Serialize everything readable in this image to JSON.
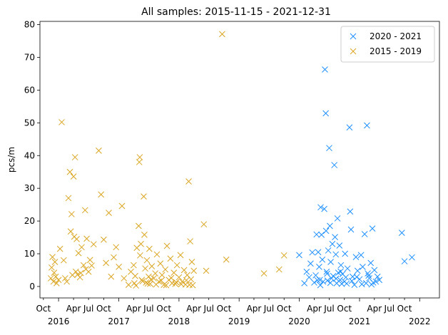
{
  "chart_data": {
    "type": "scatter",
    "title": "All samples: 2015-11-15 - 2021-12-31",
    "ylabel": "pcs/m",
    "xlabel": "",
    "ylim": [
      -3.5,
      81
    ],
    "xlim": [
      "2015-09-10",
      "2022-05-01"
    ],
    "yticks": [
      0,
      10,
      20,
      30,
      40,
      50,
      60,
      70,
      80
    ],
    "xticks_minor": [
      {
        "date": "2015-10-01",
        "label": "Oct"
      },
      {
        "date": "2016-04-01",
        "label": "Apr"
      },
      {
        "date": "2016-07-01",
        "label": "Jul"
      },
      {
        "date": "2016-10-01",
        "label": "Oct"
      },
      {
        "date": "2017-04-01",
        "label": "Apr"
      },
      {
        "date": "2017-07-01",
        "label": "Jul"
      },
      {
        "date": "2017-10-01",
        "label": "Oct"
      },
      {
        "date": "2018-04-01",
        "label": "Apr"
      },
      {
        "date": "2018-07-01",
        "label": "Jul"
      },
      {
        "date": "2018-10-01",
        "label": "Oct"
      },
      {
        "date": "2019-04-01",
        "label": "Apr"
      },
      {
        "date": "2019-07-01",
        "label": "Jul"
      },
      {
        "date": "2019-10-01",
        "label": "Oct"
      },
      {
        "date": "2020-04-01",
        "label": "Apr"
      },
      {
        "date": "2020-07-01",
        "label": "Jul"
      },
      {
        "date": "2020-10-01",
        "label": "Oct"
      },
      {
        "date": "2021-04-01",
        "label": "Apr"
      },
      {
        "date": "2021-07-01",
        "label": "Jul"
      },
      {
        "date": "2021-10-01",
        "label": "Oct"
      }
    ],
    "xticks_major": [
      {
        "date": "2016-01-01",
        "label": "2016"
      },
      {
        "date": "2017-01-01",
        "label": "2017"
      },
      {
        "date": "2018-01-01",
        "label": "2018"
      },
      {
        "date": "2019-01-01",
        "label": "2019"
      },
      {
        "date": "2020-01-01",
        "label": "2020"
      },
      {
        "date": "2021-01-01",
        "label": "2021"
      },
      {
        "date": "2022-01-01",
        "label": "2022"
      }
    ],
    "legend_position": "top-right",
    "grid": false,
    "marker": "x",
    "series": [
      {
        "name": "2020 - 2021",
        "color": "#1e90ff",
        "points": [
          [
            "2020-01-01",
            9.6
          ],
          [
            "2020-02-01",
            1.0
          ],
          [
            "2020-02-15",
            4.5
          ],
          [
            "2020-03-01",
            2.8
          ],
          [
            "2020-03-10",
            7.0
          ],
          [
            "2020-03-20",
            10.4
          ],
          [
            "2020-04-01",
            1.2
          ],
          [
            "2020-04-10",
            3.4
          ],
          [
            "2020-04-15",
            15.9
          ],
          [
            "2020-04-25",
            10.5
          ],
          [
            "2020-05-01",
            6.0
          ],
          [
            "2020-05-05",
            2.0
          ],
          [
            "2020-05-10",
            24.2
          ],
          [
            "2020-05-15",
            15.8
          ],
          [
            "2020-05-20",
            8.2
          ],
          [
            "2020-05-25",
            1.5
          ],
          [
            "2020-06-01",
            23.7
          ],
          [
            "2020-06-05",
            66.3
          ],
          [
            "2020-06-10",
            52.9
          ],
          [
            "2020-06-12",
            17.0
          ],
          [
            "2020-06-15",
            4.5
          ],
          [
            "2020-06-20",
            1.8
          ],
          [
            "2020-06-25",
            11.0
          ],
          [
            "2020-07-01",
            42.3
          ],
          [
            "2020-07-05",
            18.5
          ],
          [
            "2020-07-10",
            7.5
          ],
          [
            "2020-07-15",
            2.5
          ],
          [
            "2020-07-20",
            13.0
          ],
          [
            "2020-07-25",
            3.2
          ],
          [
            "2020-08-01",
            37.1
          ],
          [
            "2020-08-05",
            15.1
          ],
          [
            "2020-08-10",
            9.8
          ],
          [
            "2020-08-15",
            1.0
          ],
          [
            "2020-08-20",
            20.8
          ],
          [
            "2020-08-25",
            4.2
          ],
          [
            "2020-09-01",
            12.5
          ],
          [
            "2020-09-05",
            2.0
          ],
          [
            "2020-09-10",
            6.5
          ],
          [
            "2020-09-15",
            0.8
          ],
          [
            "2020-09-20",
            3.8
          ],
          [
            "2020-10-01",
            1.5
          ],
          [
            "2020-10-05",
            10.0
          ],
          [
            "2020-10-10",
            2.8
          ],
          [
            "2020-10-20",
            5.5
          ],
          [
            "2020-11-01",
            48.6
          ],
          [
            "2020-11-05",
            22.9
          ],
          [
            "2020-11-10",
            17.4
          ],
          [
            "2020-11-20",
            3.0
          ],
          [
            "2020-12-01",
            0.5
          ],
          [
            "2020-12-10",
            9.0
          ],
          [
            "2020-12-20",
            4.8
          ],
          [
            "2021-01-01",
            2.2
          ],
          [
            "2021-01-10",
            9.6
          ],
          [
            "2021-01-20",
            6.0
          ],
          [
            "2021-02-01",
            16.0
          ],
          [
            "2021-02-10",
            1.0
          ],
          [
            "2021-02-15",
            49.2
          ],
          [
            "2021-02-20",
            4.0
          ],
          [
            "2021-03-01",
            2.5
          ],
          [
            "2021-03-10",
            7.2
          ],
          [
            "2021-03-15",
            0.6
          ],
          [
            "2021-03-20",
            17.7
          ],
          [
            "2021-04-01",
            5.0
          ],
          [
            "2021-04-10",
            1.5
          ],
          [
            "2021-04-20",
            3.0
          ],
          [
            "2021-05-01",
            2.0
          ],
          [
            "2021-09-15",
            16.4
          ],
          [
            "2021-10-01",
            7.7
          ],
          [
            "2021-11-15",
            8.9
          ],
          [
            "2020-04-20",
            1.9
          ],
          [
            "2020-05-08",
            0.4
          ],
          [
            "2020-06-18",
            3.9
          ],
          [
            "2020-07-08",
            1.1
          ],
          [
            "2020-08-12",
            2.4
          ],
          [
            "2020-09-08",
            4.6
          ],
          [
            "2020-10-15",
            0.9
          ],
          [
            "2020-11-15",
            1.7
          ],
          [
            "2020-12-15",
            2.9
          ],
          [
            "2021-01-15",
            0.7
          ],
          [
            "2021-02-25",
            3.3
          ],
          [
            "2021-03-25",
            1.2
          ]
        ]
      },
      {
        "name": "2015 - 2019",
        "color": "#daa520",
        "points": [
          [
            "2015-11-15",
            2.5
          ],
          [
            "2015-11-20",
            5.8
          ],
          [
            "2015-11-25",
            9.0
          ],
          [
            "2015-12-01",
            1.5
          ],
          [
            "2015-12-05",
            4.2
          ],
          [
            "2015-12-10",
            7.5
          ],
          [
            "2015-12-15",
            3.0
          ],
          [
            "2015-12-20",
            1.0
          ],
          [
            "2016-01-01",
            2.0
          ],
          [
            "2016-01-10",
            11.5
          ],
          [
            "2016-01-20",
            50.2
          ],
          [
            "2016-02-01",
            8.0
          ],
          [
            "2016-02-10",
            2.5
          ],
          [
            "2016-02-20",
            1.5
          ],
          [
            "2016-03-01",
            27.0
          ],
          [
            "2016-03-10",
            35.0
          ],
          [
            "2016-03-15",
            16.8
          ],
          [
            "2016-03-20",
            22.1
          ],
          [
            "2016-03-25",
            3.5
          ],
          [
            "2016-04-01",
            33.6
          ],
          [
            "2016-04-05",
            15.2
          ],
          [
            "2016-04-10",
            39.5
          ],
          [
            "2016-04-15",
            4.5
          ],
          [
            "2016-04-20",
            14.5
          ],
          [
            "2016-05-01",
            10.2
          ],
          [
            "2016-05-10",
            2.8
          ],
          [
            "2016-05-20",
            12.0
          ],
          [
            "2016-06-01",
            6.5
          ],
          [
            "2016-06-10",
            23.3
          ],
          [
            "2016-06-20",
            14.6
          ],
          [
            "2016-07-01",
            4.5
          ],
          [
            "2016-07-10",
            8.1
          ],
          [
            "2016-08-01",
            12.9
          ],
          [
            "2016-09-01",
            41.5
          ],
          [
            "2016-09-15",
            28.1
          ],
          [
            "2016-10-01",
            14.3
          ],
          [
            "2016-10-15",
            7.2
          ],
          [
            "2016-11-01",
            22.5
          ],
          [
            "2016-11-15",
            3.0
          ],
          [
            "2016-12-01",
            8.9
          ],
          [
            "2016-12-15",
            12.0
          ],
          [
            "2017-01-01",
            6.0
          ],
          [
            "2017-01-20",
            24.6
          ],
          [
            "2017-02-01",
            2.5
          ],
          [
            "2017-03-01",
            0.5
          ],
          [
            "2017-03-15",
            4.5
          ],
          [
            "2017-04-01",
            6.5
          ],
          [
            "2017-04-05",
            1.0
          ],
          [
            "2017-04-10",
            3.2
          ],
          [
            "2017-04-20",
            11.8
          ],
          [
            "2017-05-01",
            18.5
          ],
          [
            "2017-05-05",
            38.0
          ],
          [
            "2017-05-08",
            39.5
          ],
          [
            "2017-05-10",
            9.5
          ],
          [
            "2017-05-15",
            13.0
          ],
          [
            "2017-05-20",
            2.0
          ],
          [
            "2017-06-01",
            27.5
          ],
          [
            "2017-06-05",
            15.8
          ],
          [
            "2017-06-10",
            5.5
          ],
          [
            "2017-06-15",
            1.2
          ],
          [
            "2017-06-20",
            8.0
          ],
          [
            "2017-07-01",
            3.0
          ],
          [
            "2017-07-05",
            11.5
          ],
          [
            "2017-07-10",
            0.8
          ],
          [
            "2017-07-20",
            6.2
          ],
          [
            "2017-08-01",
            2.5
          ],
          [
            "2017-08-10",
            4.0
          ],
          [
            "2017-08-20",
            9.8
          ],
          [
            "2017-09-01",
            1.5
          ],
          [
            "2017-09-10",
            7.0
          ],
          [
            "2017-09-20",
            3.5
          ],
          [
            "2017-10-01",
            0.5
          ],
          [
            "2017-10-10",
            5.2
          ],
          [
            "2017-10-20",
            12.4
          ],
          [
            "2017-11-01",
            2.0
          ],
          [
            "2017-11-10",
            8.5
          ],
          [
            "2017-11-20",
            1.0
          ],
          [
            "2017-12-01",
            4.2
          ],
          [
            "2017-12-10",
            0.8
          ],
          [
            "2017-12-20",
            6.5
          ],
          [
            "2018-01-01",
            2.8
          ],
          [
            "2018-01-10",
            9.6
          ],
          [
            "2018-01-20",
            1.5
          ],
          [
            "2018-02-01",
            5.0
          ],
          [
            "2018-02-10",
            0.6
          ],
          [
            "2018-02-20",
            3.5
          ],
          [
            "2018-03-01",
            32.1
          ],
          [
            "2018-03-10",
            13.8
          ],
          [
            "2018-03-15",
            2.2
          ],
          [
            "2018-03-20",
            7.5
          ],
          [
            "2018-03-25",
            0.4
          ],
          [
            "2018-04-01",
            4.8
          ],
          [
            "2018-06-01",
            19.0
          ],
          [
            "2018-06-15",
            4.8
          ],
          [
            "2018-09-20",
            77.1
          ],
          [
            "2018-10-15",
            8.2
          ],
          [
            "2019-06-01",
            4.0
          ],
          [
            "2019-09-01",
            5.2
          ],
          [
            "2019-10-01",
            9.5
          ],
          [
            "2017-04-15",
            0.3
          ],
          [
            "2017-05-25",
            1.6
          ],
          [
            "2017-06-25",
            0.9
          ],
          [
            "2017-07-15",
            2.1
          ],
          [
            "2017-08-15",
            0.6
          ],
          [
            "2017-09-15",
            1.8
          ],
          [
            "2017-10-15",
            0.4
          ],
          [
            "2017-11-15",
            2.6
          ],
          [
            "2017-12-15",
            1.3
          ],
          [
            "2018-01-15",
            0.7
          ],
          [
            "2018-02-15",
            1.9
          ],
          [
            "2018-03-05",
            0.5
          ],
          [
            "2016-05-15",
            4.1
          ],
          [
            "2016-06-15",
            5.3
          ],
          [
            "2016-04-25",
            3.6
          ],
          [
            "2016-07-20",
            6.4
          ]
        ]
      }
    ]
  }
}
